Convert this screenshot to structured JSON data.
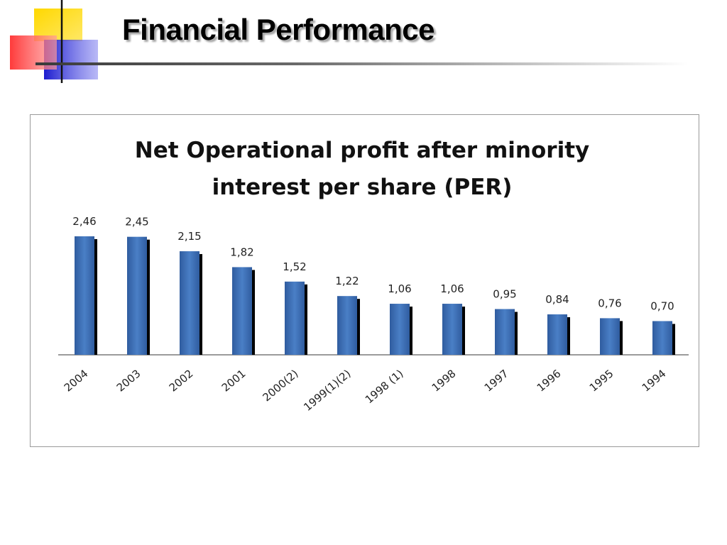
{
  "slide": {
    "title": "Financial Performance"
  },
  "colors": {
    "bar": "#4a7fc6",
    "bar_dark": "#2f5c9f",
    "bar_shadow": "#000000",
    "logo_yellow": "#ffd800",
    "logo_red": "#ff3b3b",
    "logo_blue": "#2a2adf"
  },
  "chart_data": {
    "type": "bar",
    "title_lines": [
      "Net Operational profit after minority",
      "interest per share (PER)"
    ],
    "categories": [
      "2004",
      "2003",
      "2002",
      "2001",
      "2000(2)",
      "1999(1)(2)",
      "1998 (1)",
      "1998",
      "1997",
      "1996",
      "1995",
      "1994"
    ],
    "values": [
      2.46,
      2.45,
      2.15,
      1.82,
      1.52,
      1.22,
      1.06,
      1.06,
      0.95,
      0.84,
      0.76,
      0.7
    ],
    "data_labels": [
      "2,46",
      "2,45",
      "2,15",
      "1,82",
      "1,52",
      "1,22",
      "1,06",
      "1,06",
      "0,95",
      "0,84",
      "0,76",
      "0,70"
    ],
    "xlabel": "",
    "ylabel": "",
    "ylim": [
      0,
      2.46
    ],
    "grid": false,
    "legend": "none"
  }
}
